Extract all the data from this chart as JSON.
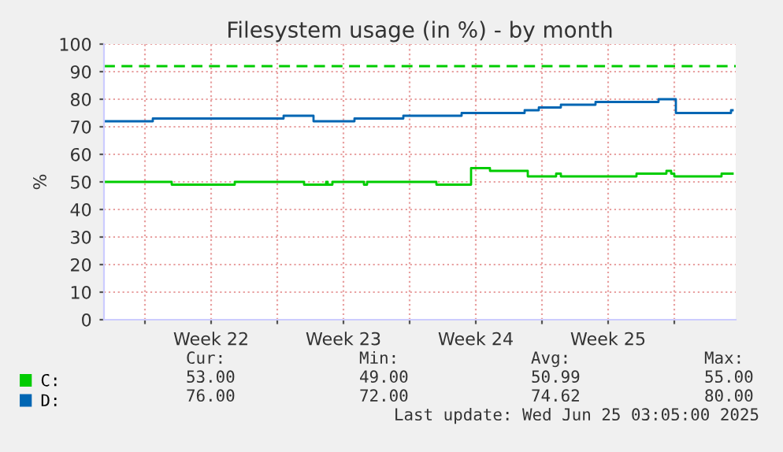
{
  "chart_data": {
    "type": "step",
    "title": "Filesystem usage (in %) - by month",
    "ylabel": "%",
    "xlim": [
      "2025-05-23T20:00",
      "2025-06-26T06:00"
    ],
    "xticks": [
      {
        "value": "2025-05-26T00:00",
        "label": null
      },
      {
        "value": "2025-05-29T12:00",
        "label": "Week 22"
      },
      {
        "value": "2025-06-02T00:00",
        "label": null
      },
      {
        "value": "2025-06-05T12:00",
        "label": "Week 23"
      },
      {
        "value": "2025-06-09T00:00",
        "label": null
      },
      {
        "value": "2025-06-12T12:00",
        "label": "Week 24"
      },
      {
        "value": "2025-06-16T00:00",
        "label": null
      },
      {
        "value": "2025-06-19T12:00",
        "label": "Week 25"
      },
      {
        "value": "2025-06-23T00:00",
        "label": null
      }
    ],
    "ylim": [
      0,
      100
    ],
    "yticks": [
      0,
      10,
      20,
      30,
      40,
      50,
      60,
      70,
      80,
      90,
      100
    ],
    "grid": true,
    "legend": "bottom",
    "series": [
      {
        "name": "C:",
        "color": "#00cc00",
        "x": [
          "2025-05-23T20:00",
          "2025-05-27T10:00",
          "2025-05-30T18:00",
          "2025-06-03T10:00",
          "2025-06-04T14:00",
          "2025-06-04T16:00",
          "2025-06-04T22:00",
          "2025-06-06T14:00",
          "2025-06-06T18:00",
          "2025-06-10T10:00",
          "2025-06-12T06:00",
          "2025-06-13T06:00",
          "2025-06-15T06:00",
          "2025-06-16T18:00",
          "2025-06-17T00:00",
          "2025-06-21T00:00",
          "2025-06-22T14:00",
          "2025-06-22T20:00",
          "2025-06-23T00:00",
          "2025-06-25T12:00",
          "2025-06-26T02:00"
        ],
        "values": [
          50,
          49,
          50,
          49,
          50,
          49,
          50,
          49,
          50,
          49,
          55,
          54,
          52,
          53,
          52,
          53,
          54,
          53,
          52,
          53,
          53
        ]
      },
      {
        "name": "D:",
        "color": "#0066b3",
        "x": [
          "2025-05-23T20:00",
          "2025-05-26T10:00",
          "2025-06-02T08:00",
          "2025-06-03T22:00",
          "2025-06-06T02:00",
          "2025-06-08T16:00",
          "2025-06-11T18:00",
          "2025-06-15T02:00",
          "2025-06-15T20:00",
          "2025-06-17T00:00",
          "2025-06-18T20:00",
          "2025-06-22T04:00",
          "2025-06-23T02:00",
          "2025-06-26T00:00",
          "2025-06-26T02:00"
        ],
        "values": [
          72,
          73,
          74,
          72,
          73,
          74,
          75,
          76,
          77,
          78,
          79,
          80,
          75,
          76,
          76
        ]
      }
    ],
    "ref_lines": [
      {
        "axis": "y",
        "value": 92,
        "color": "#00cc00",
        "line_style": "dashed"
      }
    ],
    "annotations": [
      "Cur:",
      "Min:",
      "Avg:",
      "Max:",
      "53.00",
      "49.00",
      "50.99",
      "55.00",
      "76.00",
      "72.00",
      "74.62",
      "80.00",
      "Last update: Wed Jun 25 03:05:00 2025"
    ]
  }
}
